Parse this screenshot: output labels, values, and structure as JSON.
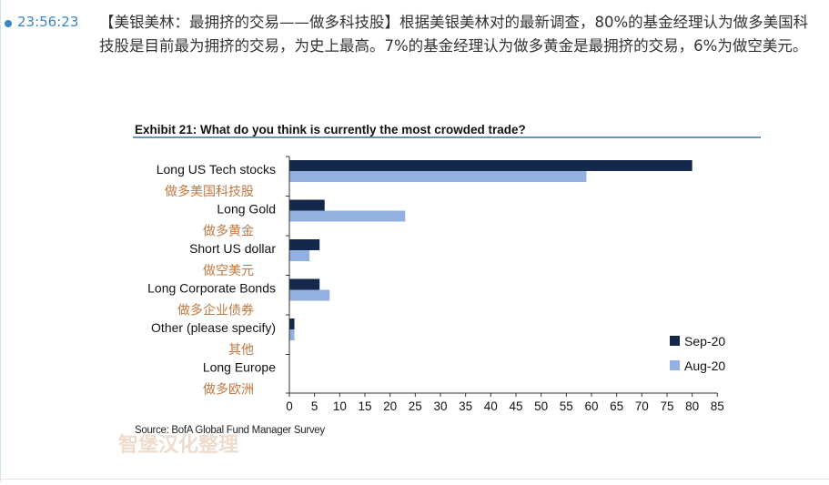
{
  "item": {
    "time": "23:56:23",
    "text": "【美银美林：最拥挤的交易——做多科技股】根据美银美林对的最新调查，80%的基金经理认为做多美国科技股是目前最为拥挤的交易，为史上最高。7%的基金经理认为做多黄金是最拥挤的交易，6%为做空美元。"
  },
  "accent_color": "#3a86c8",
  "chart_data": {
    "type": "bar",
    "orientation": "horizontal",
    "title": "Exhibit 21: What do you think is currently the most crowded trade?",
    "categories": [
      "Long US Tech stocks",
      "Long Gold",
      "Short US dollar",
      "Long Corporate Bonds",
      "Other (please specify)",
      "Long Europe"
    ],
    "categories_cn": [
      "做多美国科技股",
      "做多黄金",
      "做空美元",
      "做多企业债券",
      "其他",
      "做多欧洲"
    ],
    "series": [
      {
        "name": "Sep-20",
        "color": "#14284b",
        "values": [
          80,
          7,
          6,
          6,
          1,
          0
        ]
      },
      {
        "name": "Aug-20",
        "color": "#93b1e0",
        "values": [
          59,
          23,
          4,
          8,
          1,
          0
        ]
      }
    ],
    "xlim": [
      0,
      85
    ],
    "xticks": [
      0,
      5,
      10,
      15,
      20,
      25,
      30,
      35,
      40,
      45,
      50,
      55,
      60,
      65,
      70,
      75,
      80,
      85
    ],
    "legend_position": "bottom-right",
    "source": "Source: BofA Global Fund Manager Survey",
    "watermark": "智堡汉化整理"
  }
}
